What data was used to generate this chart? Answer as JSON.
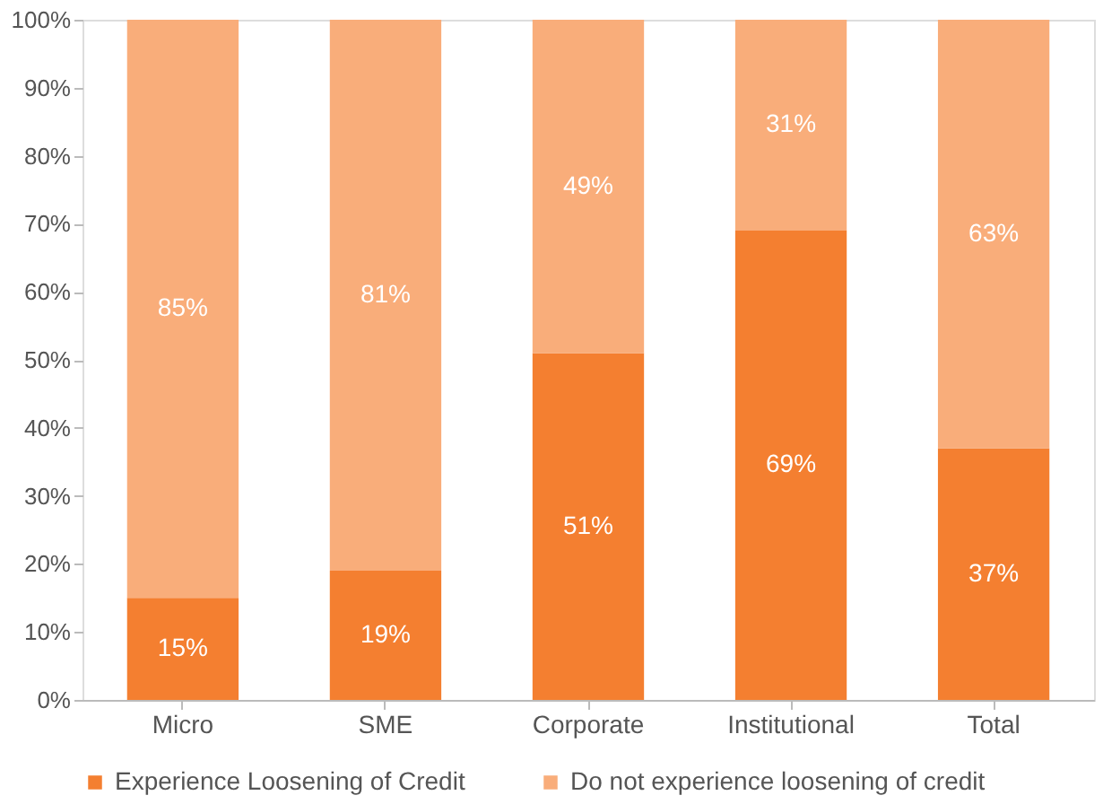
{
  "chart_data": {
    "type": "bar",
    "stacked": true,
    "categories": [
      "Micro",
      "SME",
      "Corporate",
      "Institutional",
      "Total"
    ],
    "series": [
      {
        "name": "Experience Loosening of Credit",
        "color": "#f47f30",
        "values": [
          15,
          19,
          51,
          69,
          37
        ],
        "value_labels": [
          "15%",
          "19%",
          "51%",
          "69%",
          "37%"
        ]
      },
      {
        "name": "Do not experience loosening of credit",
        "color": "#f9ad7a",
        "values": [
          85,
          81,
          49,
          31,
          63
        ],
        "value_labels": [
          "85%",
          "81%",
          "49%",
          "31%",
          "63%"
        ]
      }
    ],
    "ylim": [
      0,
      100
    ],
    "yticks": [
      {
        "value": 0,
        "label": "0%"
      },
      {
        "value": 10,
        "label": "10%"
      },
      {
        "value": 20,
        "label": "20%"
      },
      {
        "value": 30,
        "label": "30%"
      },
      {
        "value": 40,
        "label": "40%"
      },
      {
        "value": 50,
        "label": "50%"
      },
      {
        "value": 60,
        "label": "60%"
      },
      {
        "value": 70,
        "label": "70%"
      },
      {
        "value": 80,
        "label": "80%"
      },
      {
        "value": 90,
        "label": "90%"
      },
      {
        "value": 100,
        "label": "100%"
      }
    ],
    "grid": false,
    "legend": "bottom"
  }
}
